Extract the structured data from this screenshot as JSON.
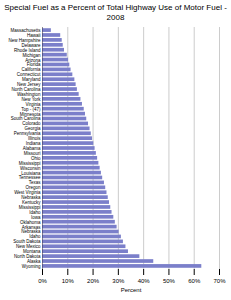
{
  "chart_data": {
    "type": "bar",
    "orientation": "horizontal",
    "title": "Special Fuel as a Percent of Total Highway Use of Motor Fuel - 2008",
    "xlabel": "Percent",
    "categories": [
      "Massachusetts",
      "Hawaii",
      "New Hampshire",
      "Delaware",
      "Rhode Island",
      "Michigan",
      "Arizona",
      "Florida",
      "California",
      "Connecticut",
      "Maryland",
      "New Jersey",
      "North Carolina",
      "Washington",
      "New York",
      "Virginia",
      "Top - (47)",
      "Minnesota",
      "South Carolina",
      "Colorado",
      "Georgia",
      "Pennsylvania",
      "Illinois",
      "Indiana",
      "Alabama",
      "Missouri",
      "Ohio",
      "Mississippi",
      "Wisconsin",
      "Louisiana",
      "Tennessee",
      "Texas",
      "Oregon",
      "West Virginia",
      "Nebraska",
      "Kentucky",
      "Mississippi",
      "Idaho",
      "Iowa",
      "Oklahoma",
      "Arkansas",
      "Nebraska",
      "Idaho",
      "South Dakota",
      "New Mexico",
      "Montana",
      "North Dakota",
      "Alaska",
      "Wyoming"
    ],
    "values": [
      3.5,
      7.2,
      7.8,
      8.2,
      8.7,
      9.8,
      10.3,
      10.8,
      11.3,
      12.0,
      12.8,
      13.3,
      13.8,
      14.5,
      15.2,
      15.8,
      16.5,
      17.0,
      17.5,
      18.2,
      18.8,
      19.3,
      19.8,
      20.3,
      20.8,
      21.3,
      21.8,
      22.3,
      22.8,
      23.3,
      23.8,
      24.5,
      25.0,
      25.5,
      26.0,
      26.5,
      27.0,
      27.5,
      28.2,
      28.8,
      29.5,
      30.3,
      31.2,
      32.0,
      33.0,
      34.0,
      38.5,
      44.0,
      63.0
    ],
    "color": "#7b7fca",
    "xlim": [
      0,
      70
    ],
    "xticks": [
      {
        "value": 0,
        "label": "0%"
      },
      {
        "value": 10,
        "label": "10%"
      },
      {
        "value": 20,
        "label": "20%"
      },
      {
        "value": 30,
        "label": "30%"
      },
      {
        "value": 40,
        "label": "40%"
      },
      {
        "value": 50,
        "label": "50%"
      },
      {
        "value": 60,
        "label": "60%"
      },
      {
        "value": 70,
        "label": "70%"
      }
    ],
    "grid": true
  }
}
